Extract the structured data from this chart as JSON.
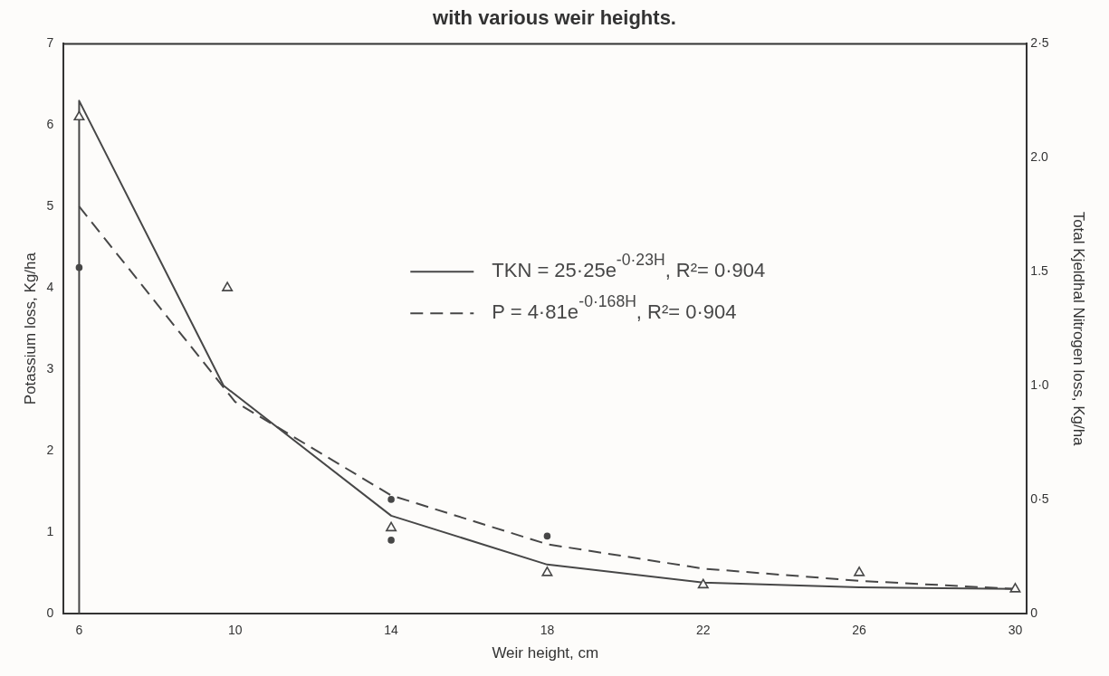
{
  "chart_data": {
    "type": "line",
    "title": "with various weir heights.",
    "xlabel": "Weir height, cm",
    "ylabel": "Potassium loss, Kg/ha",
    "y2label": "Total Kjeldhal Nitrogen loss, Kg/ha",
    "xlim": [
      5.6,
      30.3
    ],
    "xticks": [
      6,
      10,
      14,
      18,
      22,
      26,
      30
    ],
    "ylim": [
      0,
      7
    ],
    "yticks": [
      0,
      1,
      2,
      3,
      4,
      5,
      6,
      7
    ],
    "y2lim": [
      0,
      2.5
    ],
    "y2ticks": [
      {
        "value": 0,
        "label": "0"
      },
      {
        "value": 0.5,
        "label": "0·5"
      },
      {
        "value": 1,
        "label": "1·0"
      },
      {
        "value": 1.5,
        "label": "1.5"
      },
      {
        "value": 2,
        "label": "2.0"
      },
      {
        "value": 2.5,
        "label": "2·5"
      }
    ],
    "grid": false,
    "legend": "right",
    "series": [
      {
        "name": "TKN = 25·25e$^{-0·23H}$, R²= 0·904",
        "color": "#474747",
        "line_style": "solid",
        "marker": "none",
        "x": [
          6,
          6,
          9.7,
          14,
          18,
          22,
          26,
          30
        ],
        "values": [
          0,
          6.3,
          2.8,
          1.2,
          0.6,
          0.38,
          0.32,
          0.3
        ]
      },
      {
        "name": "P = 4·81e$^{-0·168H}$, R²= 0·904",
        "color": "#474747",
        "line_style": "dashed",
        "marker": "none",
        "x": [
          6,
          10,
          14,
          18,
          22,
          26,
          30
        ],
        "values": [
          5.0,
          2.6,
          1.45,
          0.85,
          0.55,
          0.4,
          0.3
        ]
      },
      {
        "type": "scatter",
        "color": "#474747",
        "marker": "circle",
        "x": [
          6,
          14,
          14,
          18
        ],
        "values": [
          4.25,
          0.9,
          1.4,
          0.95
        ]
      },
      {
        "type": "scatter",
        "color": "#474747",
        "marker": "triangle",
        "x": [
          6,
          9.8,
          14,
          18,
          22,
          26,
          30
        ],
        "values": [
          6.1,
          4.0,
          1.05,
          0.5,
          0.35,
          0.5,
          0.3
        ]
      }
    ]
  }
}
